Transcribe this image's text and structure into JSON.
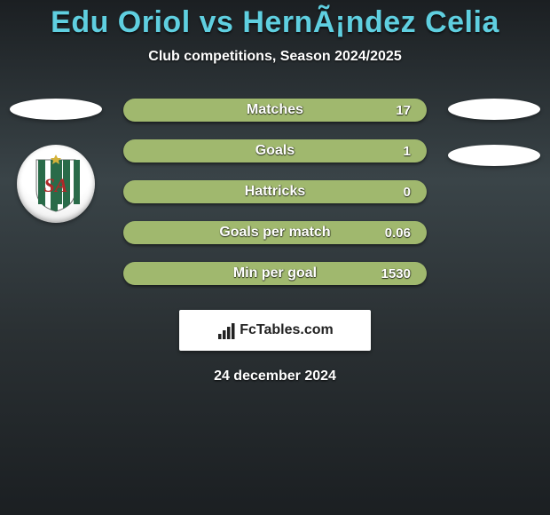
{
  "background": {
    "gradient_colors": [
      "#1b1f22",
      "#3a4448",
      "#2a3033",
      "#1b1f22"
    ],
    "gradient_stops": [
      0,
      35,
      65,
      100
    ]
  },
  "title": {
    "text": "Edu Oriol vs HernÃ¡ndez Celia",
    "color": "#5fcfe0",
    "fontsize": 34
  },
  "subtitle": {
    "text": "Club competitions, Season 2024/2025",
    "color": "#ffffff",
    "fontsize": 16
  },
  "bars": {
    "fill_color": "#a0b86e",
    "label_color": "#ffffff",
    "value_color": "#ffffff",
    "items": [
      {
        "label": "Matches",
        "value": "17"
      },
      {
        "label": "Goals",
        "value": "1"
      },
      {
        "label": "Hattricks",
        "value": "0"
      },
      {
        "label": "Goals per match",
        "value": "0.06"
      },
      {
        "label": "Min per goal",
        "value": "1530"
      }
    ]
  },
  "side_left": {
    "ellipse_color": "#ffffff",
    "club_badge": {
      "stripe_color": "#2a6b49",
      "letters": "SA",
      "letter_color": "#b02828",
      "star_color": "#d4b23a"
    }
  },
  "side_right": {
    "ellipse_color": "#ffffff"
  },
  "footer": {
    "brand_text": "FcTables.com",
    "brand_color": "#222222",
    "icon_bars": [
      6,
      10,
      14,
      18
    ]
  },
  "date": {
    "text": "24 december 2024",
    "color": "#ffffff"
  }
}
